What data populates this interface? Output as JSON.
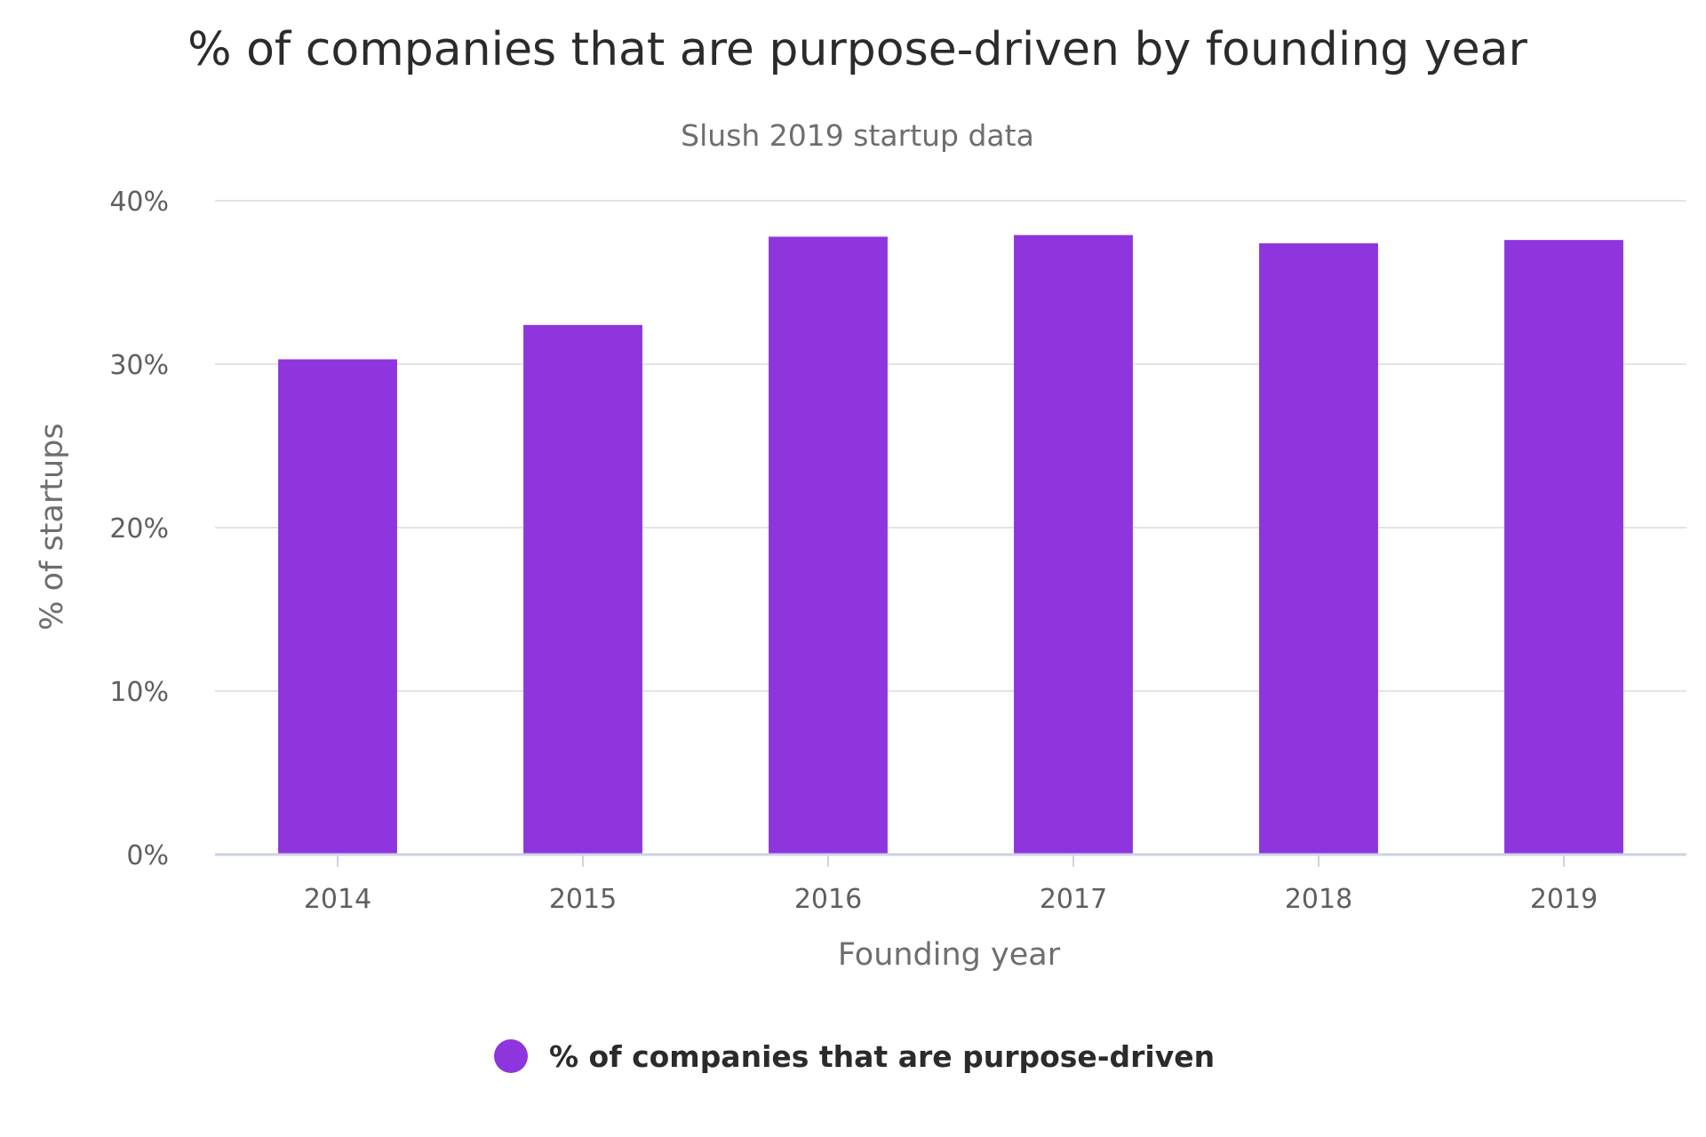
{
  "colors": {
    "bar": "#8E35DE",
    "grid": "#e3e3e3",
    "axis": "#cdd3e6"
  },
  "chart_data": {
    "type": "bar",
    "title": "% of companies that are purpose-driven by founding year",
    "subtitle": "Slush 2019 startup data",
    "xlabel": "Founding year",
    "ylabel": "% of startups",
    "categories": [
      "2014",
      "2015",
      "2016",
      "2017",
      "2018",
      "2019"
    ],
    "series": [
      {
        "name": "% of companies that are purpose-driven",
        "values": [
          30.3,
          32.4,
          37.8,
          37.9,
          37.4,
          37.6
        ]
      }
    ],
    "ylim": [
      0,
      40
    ],
    "yticks": [
      0,
      10,
      20,
      30,
      40
    ],
    "ytick_labels": [
      "0%",
      "10%",
      "20%",
      "30%",
      "40%"
    ],
    "grid": true,
    "legend": "bottom-center"
  }
}
